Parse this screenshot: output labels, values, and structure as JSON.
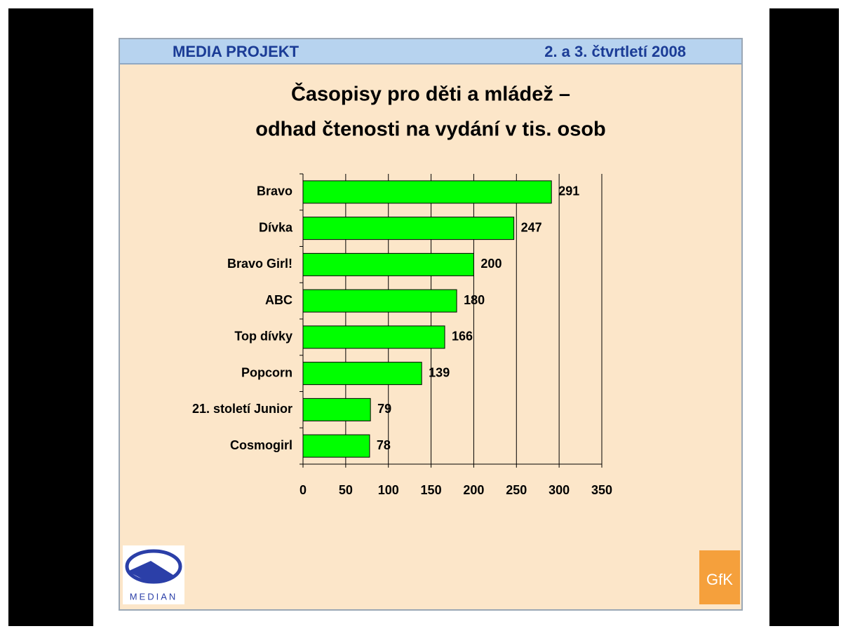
{
  "header": {
    "left": "MEDIA PROJEKT",
    "right": "2. a 3. čtvrtletí 2008"
  },
  "chart_data": {
    "type": "bar",
    "orientation": "horizontal",
    "title": [
      "Časopisy pro děti a mládež –",
      "odhad čtenosti na vydání v tis. osob"
    ],
    "categories": [
      "Bravo",
      "Dívka",
      "Bravo Girl!",
      "ABC",
      "Top dívky",
      "Popcorn",
      "21. století Junior",
      "Cosmogirl"
    ],
    "values": [
      291,
      247,
      200,
      180,
      166,
      139,
      79,
      78
    ],
    "color": "#00ff00",
    "xlim": [
      0,
      350
    ],
    "xticks": [
      0,
      50,
      100,
      150,
      200,
      250,
      300,
      350
    ],
    "grid": true
  },
  "logos": {
    "left": "MEDIAN",
    "right": "GfK"
  }
}
